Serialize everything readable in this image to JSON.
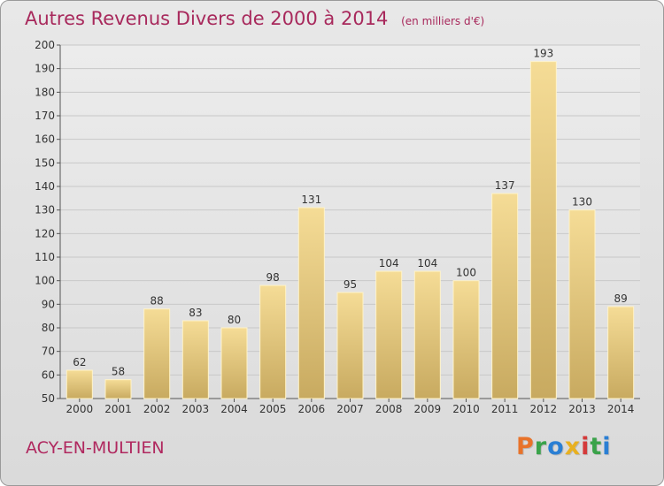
{
  "header": {
    "title": "Autres Revenus Divers de 2000 à 2014",
    "subtitle": "(en milliers d'€)"
  },
  "footer": {
    "commune": "ACY-EN-MULTIEN",
    "logo_text": "Proxiti",
    "logo_colors": [
      "#e8732a",
      "#3aa34a",
      "#2a7fd4",
      "#e8b020",
      "#d43a3a",
      "#3aa34a",
      "#2a7fd4"
    ]
  },
  "chart_data": {
    "type": "bar",
    "title": "Autres Revenus Divers de 2000 à 2014",
    "subtitle": "(en milliers d'€)",
    "categories": [
      "2000",
      "2001",
      "2002",
      "2003",
      "2004",
      "2005",
      "2006",
      "2007",
      "2008",
      "2009",
      "2010",
      "2011",
      "2012",
      "2013",
      "2014"
    ],
    "values": [
      62,
      58,
      88,
      83,
      80,
      98,
      131,
      95,
      104,
      104,
      100,
      137,
      193,
      130,
      89
    ],
    "ylim": [
      50,
      200
    ],
    "yticks": [
      50,
      60,
      70,
      80,
      90,
      100,
      110,
      120,
      130,
      140,
      150,
      160,
      170,
      180,
      190,
      200
    ],
    "xlabel": "",
    "ylabel": "",
    "grid": true,
    "bar_color_top": "#f5dc96",
    "bar_color_bottom": "#c8aa60"
  }
}
